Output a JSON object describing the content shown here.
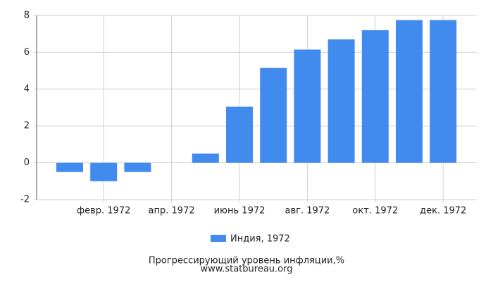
{
  "chart_data": {
    "type": "bar",
    "title": "Прогрессирующий уровень инфляции,%",
    "subtitle": "www.statbureau.org",
    "categories": [
      null,
      "февр. 1972",
      null,
      "апр. 1972",
      null,
      "июнь 1972",
      null,
      "авг. 1972",
      null,
      "окт. 1972",
      null,
      "дек. 1972"
    ],
    "series": [
      {
        "name": "Индия, 1972",
        "color": "#428bee",
        "values": [
          -0.5,
          -1.0,
          -0.5,
          0,
          0.5,
          3.05,
          5.15,
          6.15,
          6.7,
          7.2,
          7.75,
          7.75
        ]
      }
    ],
    "ylim": [
      -2,
      8
    ],
    "yticks": [
      -2,
      0,
      2,
      4,
      6,
      8
    ],
    "grid": true
  }
}
